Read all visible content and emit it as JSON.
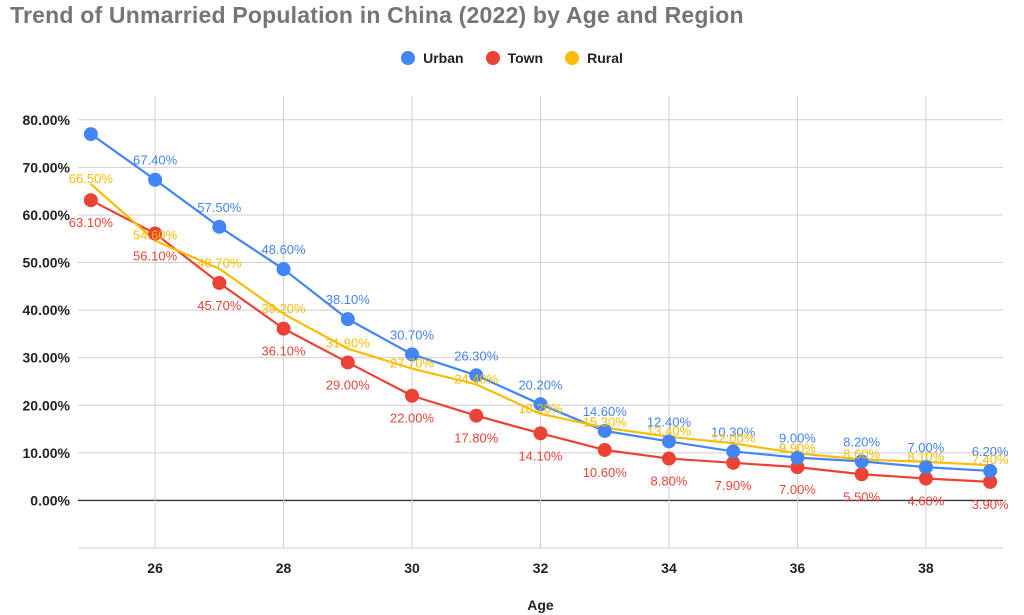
{
  "chart_data": {
    "type": "line",
    "title": "Trend of Unmarried Population in China (2022) by Age and Region",
    "xlabel": "Age",
    "ylabel": "",
    "x": [
      25,
      26,
      27,
      28,
      29,
      30,
      31,
      32,
      33,
      34,
      35,
      36,
      37,
      38,
      39
    ],
    "xticks": [
      "26",
      "28",
      "30",
      "32",
      "34",
      "36",
      "38"
    ],
    "yticks": [
      "0.00%",
      "10.00%",
      "20.00%",
      "30.00%",
      "40.00%",
      "50.00%",
      "60.00%",
      "70.00%",
      "80.00%"
    ],
    "ylim": [
      -10,
      85
    ],
    "grid": true,
    "legend_position": "top",
    "series": [
      {
        "name": "Urban",
        "color": "#4285f4",
        "values": [
          77.0,
          67.4,
          57.5,
          48.6,
          38.1,
          30.7,
          26.3,
          20.2,
          14.6,
          12.4,
          10.3,
          9.0,
          8.2,
          7.0,
          6.2
        ],
        "labels": [
          "",
          "67.40%",
          "57.50%",
          "48.60%",
          "38.10%",
          "30.70%",
          "26.30%",
          "20.20%",
          "14.60%",
          "12.40%",
          "10.30%",
          "9.00%",
          "8.20%",
          "7.00%",
          "6.20%"
        ]
      },
      {
        "name": "Town",
        "color": "#ea4335",
        "values": [
          63.1,
          56.1,
          45.7,
          36.1,
          29.0,
          22.0,
          17.8,
          14.1,
          10.6,
          8.8,
          7.9,
          7.0,
          5.5,
          4.6,
          3.9
        ],
        "labels": [
          "63.10%",
          "56.10%",
          "45.70%",
          "36.10%",
          "29.00%",
          "22.00%",
          "17.80%",
          "14.10%",
          "10.60%",
          "8.80%",
          "7.90%",
          "7.00%",
          "5.50%",
          "4.60%",
          "3.90%"
        ]
      },
      {
        "name": "Rural",
        "color": "#fbbc04",
        "values": [
          66.5,
          54.6,
          48.7,
          39.2,
          31.9,
          27.7,
          24.4,
          18.2,
          15.3,
          13.4,
          12.0,
          9.9,
          8.6,
          8.1,
          7.4
        ],
        "labels": [
          "66.50%",
          "54.60%",
          "48.70%",
          "39.20%",
          "31.90%",
          "27.70%",
          "24.40%",
          "18.20%",
          "15.30%",
          "13.40%",
          "12.00%",
          "9.90%",
          "8.60%",
          "8.10%",
          "7.40%"
        ]
      }
    ]
  }
}
